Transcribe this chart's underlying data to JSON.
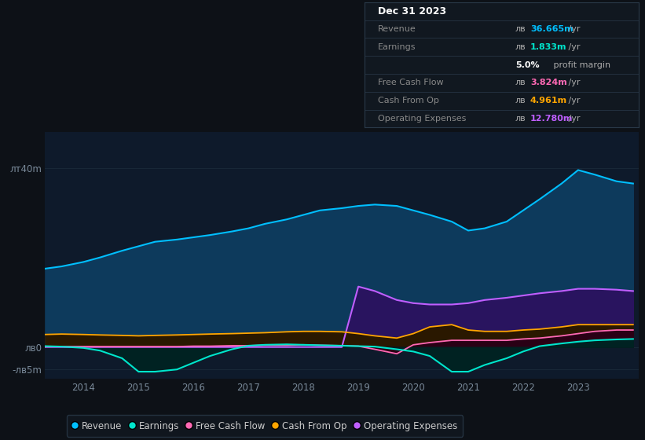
{
  "background_color": "#0d1117",
  "plot_bg_color": "#0e1a2b",
  "grid_color": "#1a2a3a",
  "ylim": [
    -7,
    48
  ],
  "yticks": [
    -5,
    0,
    40
  ],
  "ytick_labels": [
    "-лв5m",
    "лв0",
    "лт40m"
  ],
  "xlabel_years": [
    2014,
    2015,
    2016,
    2017,
    2018,
    2019,
    2020,
    2021,
    2022,
    2023
  ],
  "series": {
    "revenue": {
      "color": "#00bfff",
      "fill_color": "#0d3a5c",
      "years": [
        2013.3,
        2013.6,
        2014.0,
        2014.3,
        2014.7,
        2015.0,
        2015.3,
        2015.7,
        2016.0,
        2016.3,
        2016.7,
        2017.0,
        2017.3,
        2017.7,
        2018.0,
        2018.3,
        2018.7,
        2019.0,
        2019.3,
        2019.7,
        2020.0,
        2020.3,
        2020.7,
        2021.0,
        2021.3,
        2021.7,
        2022.0,
        2022.3,
        2022.7,
        2023.0,
        2023.3,
        2023.7,
        2024.0
      ],
      "values": [
        17.5,
        18.0,
        19.0,
        20.0,
        21.5,
        22.5,
        23.5,
        24.0,
        24.5,
        25.0,
        25.8,
        26.5,
        27.5,
        28.5,
        29.5,
        30.5,
        31.0,
        31.5,
        31.8,
        31.5,
        30.5,
        29.5,
        28.0,
        26.0,
        26.5,
        28.0,
        30.5,
        33.0,
        36.5,
        39.5,
        38.5,
        37.0,
        36.5
      ]
    },
    "earnings": {
      "color": "#00e5cc",
      "fill_color": "#002222",
      "years": [
        2013.3,
        2013.6,
        2014.0,
        2014.3,
        2014.7,
        2015.0,
        2015.3,
        2015.7,
        2016.0,
        2016.3,
        2016.7,
        2017.0,
        2017.3,
        2017.7,
        2018.0,
        2018.3,
        2018.7,
        2019.0,
        2019.3,
        2019.7,
        2020.0,
        2020.3,
        2020.7,
        2021.0,
        2021.3,
        2021.7,
        2022.0,
        2022.3,
        2022.7,
        2023.0,
        2023.3,
        2023.7,
        2024.0
      ],
      "values": [
        0.2,
        0.1,
        -0.2,
        -0.8,
        -2.5,
        -5.5,
        -5.5,
        -5.0,
        -3.5,
        -2.0,
        -0.5,
        0.3,
        0.5,
        0.6,
        0.5,
        0.4,
        0.3,
        0.2,
        0.1,
        -0.5,
        -1.0,
        -2.0,
        -5.5,
        -5.5,
        -4.0,
        -2.5,
        -1.0,
        0.2,
        0.8,
        1.2,
        1.5,
        1.7,
        1.8
      ]
    },
    "free_cash_flow": {
      "color": "#ff69b4",
      "fill_color": "#2a0015",
      "years": [
        2013.3,
        2013.6,
        2014.0,
        2014.3,
        2014.7,
        2015.0,
        2015.3,
        2015.7,
        2016.0,
        2016.3,
        2016.7,
        2017.0,
        2017.3,
        2017.7,
        2018.0,
        2018.3,
        2018.7,
        2019.0,
        2019.3,
        2019.7,
        2020.0,
        2020.3,
        2020.7,
        2021.0,
        2021.3,
        2021.7,
        2022.0,
        2022.3,
        2022.7,
        2023.0,
        2023.3,
        2023.7,
        2024.0
      ],
      "values": [
        0.1,
        0.1,
        0.1,
        0.1,
        0.1,
        0.1,
        0.1,
        0.1,
        0.2,
        0.2,
        0.3,
        0.3,
        0.4,
        0.4,
        0.5,
        0.4,
        0.3,
        0.2,
        -0.5,
        -1.5,
        0.5,
        1.0,
        1.5,
        1.5,
        1.5,
        1.5,
        1.8,
        2.0,
        2.5,
        3.0,
        3.5,
        3.8,
        3.8
      ]
    },
    "cash_from_op": {
      "color": "#ffa500",
      "fill_color": "#2a1800",
      "years": [
        2013.3,
        2013.6,
        2014.0,
        2014.3,
        2014.7,
        2015.0,
        2015.3,
        2015.7,
        2016.0,
        2016.3,
        2016.7,
        2017.0,
        2017.3,
        2017.7,
        2018.0,
        2018.3,
        2018.7,
        2019.0,
        2019.3,
        2019.7,
        2020.0,
        2020.3,
        2020.7,
        2021.0,
        2021.3,
        2021.7,
        2022.0,
        2022.3,
        2022.7,
        2023.0,
        2023.3,
        2023.7,
        2024.0
      ],
      "values": [
        2.8,
        2.9,
        2.8,
        2.7,
        2.6,
        2.5,
        2.6,
        2.7,
        2.8,
        2.9,
        3.0,
        3.1,
        3.2,
        3.4,
        3.5,
        3.5,
        3.4,
        3.0,
        2.5,
        2.0,
        3.0,
        4.5,
        5.0,
        3.8,
        3.5,
        3.5,
        3.8,
        4.0,
        4.5,
        5.0,
        5.0,
        5.0,
        5.0
      ]
    },
    "operating_expenses": {
      "color": "#bf5fff",
      "fill_color": "#2d1060",
      "years": [
        2013.3,
        2013.6,
        2014.0,
        2014.3,
        2014.7,
        2015.0,
        2015.3,
        2015.7,
        2016.0,
        2016.3,
        2016.7,
        2017.0,
        2017.3,
        2017.7,
        2018.0,
        2018.3,
        2018.7,
        2019.0,
        2019.3,
        2019.7,
        2020.0,
        2020.3,
        2020.7,
        2021.0,
        2021.3,
        2021.7,
        2022.0,
        2022.3,
        2022.7,
        2023.0,
        2023.3,
        2023.7,
        2024.0
      ],
      "values": [
        0.0,
        0.0,
        0.0,
        0.0,
        0.0,
        0.0,
        0.0,
        0.0,
        0.0,
        0.0,
        0.0,
        0.0,
        0.0,
        0.0,
        0.0,
        0.0,
        0.0,
        13.5,
        12.5,
        10.5,
        9.8,
        9.5,
        9.5,
        9.8,
        10.5,
        11.0,
        11.5,
        12.0,
        12.5,
        13.0,
        13.0,
        12.8,
        12.5
      ]
    }
  },
  "info_box": {
    "title": "Dec 31 2023",
    "title_color": "#ffffff",
    "bg_color": "#111820",
    "border_color": "#2a3a4a",
    "label_color": "#888888",
    "suffix_color": "#aaaaaa",
    "rows": [
      {
        "label": "Revenue",
        "prefix": "лв",
        "value": "36.665m",
        "val_color": "#00bfff",
        "suffix": " /yr"
      },
      {
        "label": "Earnings",
        "prefix": "лв",
        "value": "1.833m",
        "val_color": "#00e5cc",
        "suffix": " /yr"
      },
      {
        "label": "",
        "prefix": "",
        "value": "5.0%",
        "val_color": "#ffffff",
        "suffix": " profit margin",
        "bold": true
      },
      {
        "label": "Free Cash Flow",
        "prefix": "лв",
        "value": "3.824m",
        "val_color": "#ff69b4",
        "suffix": " /yr"
      },
      {
        "label": "Cash From Op",
        "prefix": "лв",
        "value": "4.961m",
        "val_color": "#ffa500",
        "suffix": " /yr"
      },
      {
        "label": "Operating Expenses",
        "prefix": "лв",
        "value": "12.780m",
        "val_color": "#bf5fff",
        "suffix": " /yr"
      }
    ]
  },
  "legend": [
    {
      "label": "Revenue",
      "color": "#00bfff"
    },
    {
      "label": "Earnings",
      "color": "#00e5cc"
    },
    {
      "label": "Free Cash Flow",
      "color": "#ff69b4"
    },
    {
      "label": "Cash From Op",
      "color": "#ffa500"
    },
    {
      "label": "Operating Expenses",
      "color": "#bf5fff"
    }
  ]
}
